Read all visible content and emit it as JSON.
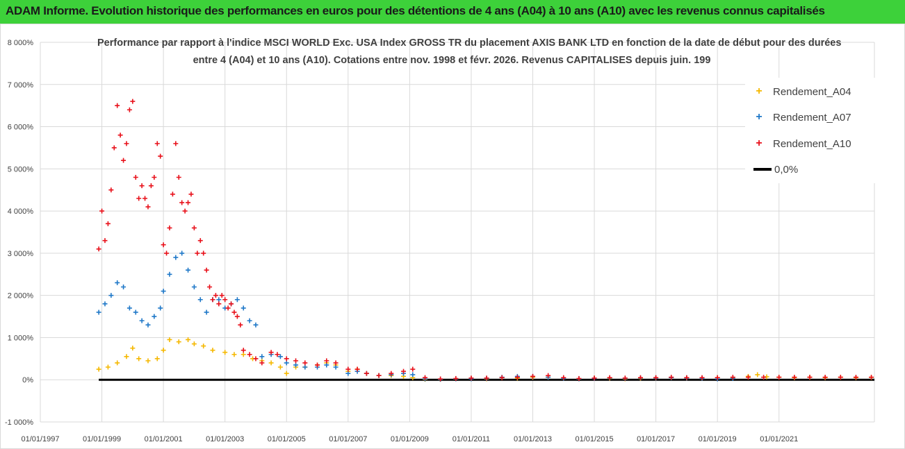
{
  "header": {
    "banner": "ADAM Informe. Evolution historique des performances en euros pour des détentions de 4 ans (A04) à 10 ans (A10) avec les revenus connus capitalisés"
  },
  "colors": {
    "banner": "#3dd13a",
    "a04": "#f5b800",
    "a07": "#1f78c8",
    "a10": "#e8101a",
    "zero": "#000000"
  },
  "chart_data": {
    "type": "scatter",
    "title": "Performance par rapport à l'indice MSCI WORLD Exc. USA Index GROSS TR  du placement AXIS BANK LTD en fonction de la date de début pour des durées",
    "subtitle": "entre 4 (A04) et 10 ans (A10). Cotations entre nov. 1998 et févr. 2026. Revenus CAPITALISES depuis juin. 199",
    "xlabel": "",
    "ylabel": "",
    "xlim": [
      1997.0,
      2024.1
    ],
    "ylim": [
      -1000,
      8000
    ],
    "y_ticks": [
      "-1 000%",
      "0%",
      "1 000%",
      "2 000%",
      "3 000%",
      "4 000%",
      "5 000%",
      "6 000%",
      "7 000%",
      "8 000%"
    ],
    "x_ticks": [
      "01/01/1997",
      "01/01/1999",
      "01/01/2001",
      "01/01/2003",
      "01/01/2005",
      "01/01/2007",
      "01/01/2009",
      "01/01/2011",
      "01/01/2013",
      "01/01/2015",
      "01/01/2017",
      "01/01/2019",
      "01/01/2021"
    ],
    "legend": {
      "position": "top-right",
      "entries": [
        "Rendement_A04",
        "Rendement_A07",
        "Rendement_A10",
        "0,0%"
      ]
    },
    "series": [
      {
        "name": "Rendement_A04",
        "marker": "+",
        "points": [
          [
            1998.9,
            250
          ],
          [
            1999.2,
            300
          ],
          [
            1999.5,
            400
          ],
          [
            1999.8,
            550
          ],
          [
            2000.0,
            750
          ],
          [
            2000.2,
            500
          ],
          [
            2000.5,
            450
          ],
          [
            2000.8,
            500
          ],
          [
            2001.0,
            700
          ],
          [
            2001.2,
            950
          ],
          [
            2001.5,
            900
          ],
          [
            2001.8,
            950
          ],
          [
            2002.0,
            850
          ],
          [
            2002.3,
            800
          ],
          [
            2002.6,
            700
          ],
          [
            2003.0,
            650
          ],
          [
            2003.3,
            600
          ],
          [
            2003.6,
            600
          ],
          [
            2003.9,
            500
          ],
          [
            2004.2,
            450
          ],
          [
            2004.5,
            400
          ],
          [
            2004.8,
            300
          ],
          [
            2005.0,
            150
          ],
          [
            2005.3,
            300
          ],
          [
            2005.6,
            300
          ],
          [
            2006.0,
            350
          ],
          [
            2006.3,
            400
          ],
          [
            2006.6,
            350
          ],
          [
            2007.0,
            200
          ],
          [
            2007.3,
            250
          ],
          [
            2007.6,
            150
          ],
          [
            2008.0,
            100
          ],
          [
            2008.4,
            100
          ],
          [
            2008.8,
            80
          ],
          [
            2009.1,
            50
          ],
          [
            2009.5,
            10
          ],
          [
            2010.0,
            10
          ],
          [
            2010.5,
            20
          ],
          [
            2011.0,
            30
          ],
          [
            2011.5,
            20
          ],
          [
            2012.0,
            50
          ],
          [
            2012.5,
            40
          ],
          [
            2013.0,
            60
          ],
          [
            2013.5,
            60
          ],
          [
            2014.0,
            30
          ],
          [
            2014.5,
            20
          ],
          [
            2015.0,
            40
          ],
          [
            2015.5,
            30
          ],
          [
            2016.0,
            20
          ],
          [
            2016.5,
            30
          ],
          [
            2017.0,
            40
          ],
          [
            2017.5,
            50
          ],
          [
            2018.0,
            40
          ],
          [
            2018.5,
            30
          ],
          [
            2019.0,
            50
          ],
          [
            2019.5,
            40
          ],
          [
            2020.0,
            80
          ],
          [
            2020.3,
            120
          ],
          [
            2020.6,
            70
          ],
          [
            2021.0,
            60
          ],
          [
            2021.5,
            50
          ],
          [
            2022.0,
            60
          ],
          [
            2022.5,
            50
          ],
          [
            2023.0,
            60
          ],
          [
            2023.5,
            50
          ],
          [
            2024.0,
            55
          ]
        ]
      },
      {
        "name": "Rendement_A07",
        "marker": "+",
        "points": [
          [
            1998.9,
            1600
          ],
          [
            1999.1,
            1800
          ],
          [
            1999.3,
            2000
          ],
          [
            1999.5,
            2300
          ],
          [
            1999.7,
            2200
          ],
          [
            1999.9,
            1700
          ],
          [
            2000.1,
            1600
          ],
          [
            2000.3,
            1400
          ],
          [
            2000.5,
            1300
          ],
          [
            2000.7,
            1500
          ],
          [
            2000.9,
            1700
          ],
          [
            2001.0,
            2100
          ],
          [
            2001.2,
            2500
          ],
          [
            2001.4,
            2900
          ],
          [
            2001.6,
            3000
          ],
          [
            2001.8,
            2600
          ],
          [
            2002.0,
            2200
          ],
          [
            2002.2,
            1900
          ],
          [
            2002.4,
            1600
          ],
          [
            2002.6,
            1900
          ],
          [
            2002.8,
            1900
          ],
          [
            2003.0,
            1700
          ],
          [
            2003.2,
            1800
          ],
          [
            2003.4,
            1900
          ],
          [
            2003.6,
            1700
          ],
          [
            2003.8,
            1400
          ],
          [
            2004.0,
            1300
          ],
          [
            2004.2,
            550
          ],
          [
            2004.5,
            600
          ],
          [
            2004.8,
            550
          ],
          [
            2005.0,
            400
          ],
          [
            2005.3,
            350
          ],
          [
            2005.6,
            300
          ],
          [
            2006.0,
            300
          ],
          [
            2006.3,
            350
          ],
          [
            2006.6,
            300
          ],
          [
            2007.0,
            150
          ],
          [
            2007.3,
            200
          ],
          [
            2007.6,
            150
          ],
          [
            2008.0,
            100
          ],
          [
            2008.4,
            120
          ],
          [
            2008.8,
            150
          ],
          [
            2009.1,
            120
          ],
          [
            2009.5,
            20
          ],
          [
            2010.0,
            10
          ],
          [
            2010.5,
            20
          ],
          [
            2011.0,
            20
          ],
          [
            2011.5,
            30
          ],
          [
            2012.0,
            60
          ],
          [
            2012.5,
            80
          ],
          [
            2013.0,
            80
          ],
          [
            2013.5,
            60
          ],
          [
            2014.0,
            30
          ],
          [
            2014.5,
            20
          ],
          [
            2015.0,
            30
          ],
          [
            2015.5,
            40
          ],
          [
            2016.0,
            30
          ],
          [
            2016.5,
            40
          ],
          [
            2017.0,
            40
          ],
          [
            2017.5,
            50
          ],
          [
            2018.0,
            40
          ],
          [
            2018.5,
            30
          ],
          [
            2019.0,
            20
          ],
          [
            2019.5,
            30
          ]
        ]
      },
      {
        "name": "Rendement_A10",
        "marker": "+",
        "points": [
          [
            1998.9,
            3100
          ],
          [
            1999.0,
            4000
          ],
          [
            1999.1,
            3300
          ],
          [
            1999.2,
            3700
          ],
          [
            1999.3,
            4500
          ],
          [
            1999.4,
            5500
          ],
          [
            1999.5,
            6500
          ],
          [
            1999.6,
            5800
          ],
          [
            1999.7,
            5200
          ],
          [
            1999.8,
            5600
          ],
          [
            1999.9,
            6400
          ],
          [
            2000.0,
            6600
          ],
          [
            2000.1,
            4800
          ],
          [
            2000.2,
            4300
          ],
          [
            2000.3,
            4600
          ],
          [
            2000.4,
            4300
          ],
          [
            2000.5,
            4100
          ],
          [
            2000.6,
            4600
          ],
          [
            2000.7,
            4800
          ],
          [
            2000.8,
            5600
          ],
          [
            2000.9,
            5300
          ],
          [
            2001.0,
            3200
          ],
          [
            2001.1,
            3000
          ],
          [
            2001.2,
            3600
          ],
          [
            2001.3,
            4400
          ],
          [
            2001.4,
            5600
          ],
          [
            2001.5,
            4800
          ],
          [
            2001.6,
            4200
          ],
          [
            2001.7,
            4000
          ],
          [
            2001.8,
            4200
          ],
          [
            2001.9,
            4400
          ],
          [
            2002.0,
            3600
          ],
          [
            2002.1,
            3000
          ],
          [
            2002.2,
            3300
          ],
          [
            2002.3,
            3000
          ],
          [
            2002.4,
            2600
          ],
          [
            2002.5,
            2200
          ],
          [
            2002.6,
            1900
          ],
          [
            2002.7,
            2000
          ],
          [
            2002.8,
            1800
          ],
          [
            2002.9,
            2000
          ],
          [
            2003.0,
            1900
          ],
          [
            2003.1,
            1700
          ],
          [
            2003.2,
            1800
          ],
          [
            2003.3,
            1600
          ],
          [
            2003.4,
            1500
          ],
          [
            2003.5,
            1300
          ],
          [
            2003.6,
            700
          ],
          [
            2003.8,
            600
          ],
          [
            2004.0,
            500
          ],
          [
            2004.2,
            400
          ],
          [
            2004.5,
            650
          ],
          [
            2004.7,
            600
          ],
          [
            2005.0,
            500
          ],
          [
            2005.3,
            450
          ],
          [
            2005.6,
            400
          ],
          [
            2006.0,
            350
          ],
          [
            2006.3,
            450
          ],
          [
            2006.6,
            400
          ],
          [
            2007.0,
            250
          ],
          [
            2007.3,
            250
          ],
          [
            2007.6,
            150
          ],
          [
            2008.0,
            100
          ],
          [
            2008.4,
            150
          ],
          [
            2008.8,
            200
          ],
          [
            2009.1,
            250
          ],
          [
            2009.5,
            50
          ],
          [
            2010.0,
            20
          ],
          [
            2010.5,
            30
          ],
          [
            2011.0,
            40
          ],
          [
            2011.5,
            40
          ],
          [
            2012.0,
            50
          ],
          [
            2012.5,
            60
          ],
          [
            2013.0,
            80
          ],
          [
            2013.5,
            100
          ],
          [
            2014.0,
            50
          ],
          [
            2014.5,
            30
          ],
          [
            2015.0,
            40
          ],
          [
            2015.5,
            50
          ],
          [
            2016.0,
            40
          ],
          [
            2016.5,
            50
          ],
          [
            2017.0,
            50
          ],
          [
            2017.5,
            60
          ],
          [
            2018.0,
            50
          ],
          [
            2018.5,
            50
          ],
          [
            2019.0,
            50
          ],
          [
            2019.5,
            60
          ],
          [
            2020.0,
            60
          ],
          [
            2020.5,
            60
          ],
          [
            2021.0,
            60
          ],
          [
            2021.5,
            60
          ],
          [
            2022.0,
            60
          ],
          [
            2022.5,
            60
          ],
          [
            2023.0,
            60
          ],
          [
            2023.5,
            60
          ],
          [
            2024.0,
            60
          ]
        ]
      },
      {
        "name": "0,0%",
        "type": "line",
        "points": [
          [
            1998.9,
            0
          ],
          [
            2024.1,
            0
          ]
        ]
      }
    ]
  }
}
